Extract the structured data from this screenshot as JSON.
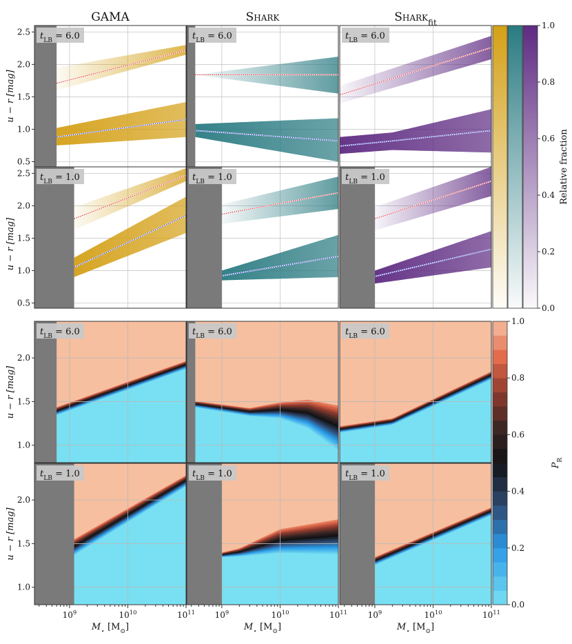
{
  "figure": {
    "column_titles": [
      "GAMA",
      "Shark",
      "Shark",
      "fit"
    ],
    "x_label": "M",
    "x_label_sub": "⋆",
    "x_label_unit": " [M",
    "x_label_unit_sub": "⊙",
    "x_label_unit_end": "]",
    "y_label": "u − r [mag]",
    "top_colorbar_label": "Relative fraction",
    "bottom_colorbar_label": "P",
    "bottom_colorbar_label_sub": "R",
    "panel_label_prefix": "t",
    "panel_label_sub": "LB"
  },
  "colors": {
    "gama": "#d4a017",
    "shark": "#2a7b82",
    "sharkfit": "#5e2b82",
    "red_line": "#e0202a",
    "blue_line": "#2030d0",
    "masked": "#7a7a7a",
    "prob_red": "#f6bfa0",
    "prob_blue": "#78e0f2"
  },
  "chart_data": [
    {
      "type": "area",
      "panel": "GAMA, t_LB = 6.0",
      "t_LB": "6.0",
      "x_scale": "log",
      "xlim": [
        250000000.0,
        100000000000.0
      ],
      "ylim": [
        0.42,
        2.6
      ],
      "mask_below_mass": 600000000.0,
      "series": [
        {
          "name": "red",
          "x": [
            600000000.0,
            100000000000.0
          ],
          "median": [
            1.71,
            2.22
          ],
          "lower": [
            1.6,
            2.15
          ],
          "upper": [
            1.95,
            2.3
          ]
        },
        {
          "name": "blue",
          "x": [
            600000000.0,
            100000000000.0
          ],
          "median": [
            0.88,
            1.15
          ],
          "lower": [
            0.75,
            0.88
          ],
          "upper": [
            1.02,
            1.42
          ]
        }
      ]
    },
    {
      "type": "area",
      "panel": "Shark, t_LB = 6.0",
      "t_LB": "6.0",
      "x_scale": "log",
      "xlim": [
        250000000.0,
        100000000000.0
      ],
      "ylim": [
        0.42,
        2.6
      ],
      "mask_below_mass": 350000000.0,
      "series": [
        {
          "name": "red",
          "x": [
            350000000.0,
            100000000000.0
          ],
          "median": [
            1.84,
            1.84
          ],
          "lower": [
            1.84,
            1.55
          ],
          "upper": [
            1.84,
            2.12
          ]
        },
        {
          "name": "blue",
          "x": [
            350000000.0,
            100000000000.0
          ],
          "median": [
            0.98,
            0.82
          ],
          "lower": [
            0.88,
            0.5
          ],
          "upper": [
            1.08,
            1.17
          ]
        }
      ]
    },
    {
      "type": "area",
      "panel": "Shark fit, t_LB = 6.0",
      "t_LB": "6.0",
      "x_scale": "log",
      "xlim": [
        250000000.0,
        100000000000.0
      ],
      "ylim": [
        0.42,
        2.6
      ],
      "mask_below_mass": 250000000.0,
      "series": [
        {
          "name": "red",
          "x": [
            250000000.0,
            100000000000.0
          ],
          "median": [
            1.53,
            2.26
          ],
          "lower": [
            1.4,
            2.08
          ],
          "upper": [
            1.67,
            2.44
          ]
        },
        {
          "name": "blue",
          "x": [
            250000000.0,
            2000000000.0,
            100000000000.0
          ],
          "median": [
            0.74,
            0.82,
            0.98
          ],
          "lower": [
            0.62,
            0.68,
            0.64
          ],
          "upper": [
            0.88,
            0.95,
            1.31
          ]
        }
      ]
    },
    {
      "type": "area",
      "panel": "GAMA, t_LB = 1.0",
      "t_LB": "1.0",
      "x_scale": "log",
      "xlim": [
        250000000.0,
        100000000000.0
      ],
      "ylim": [
        0.42,
        2.6
      ],
      "mask_below_mass": 1200000000.0,
      "series": [
        {
          "name": "red",
          "x": [
            1200000000.0,
            100000000000.0
          ],
          "median": [
            1.8,
            2.47
          ],
          "lower": [
            1.63,
            2.38
          ],
          "upper": [
            1.98,
            2.58
          ]
        },
        {
          "name": "blue",
          "x": [
            1200000000.0,
            100000000000.0
          ],
          "median": [
            1.05,
            1.85
          ],
          "lower": [
            0.9,
            1.58
          ],
          "upper": [
            1.2,
            2.14
          ]
        }
      ]
    },
    {
      "type": "area",
      "panel": "Shark, t_LB = 1.0",
      "t_LB": "1.0",
      "x_scale": "log",
      "xlim": [
        250000000.0,
        100000000000.0
      ],
      "ylim": [
        0.42,
        2.6
      ],
      "mask_below_mass": 1000000000.0,
      "series": [
        {
          "name": "red",
          "x": [
            1000000000.0,
            100000000000.0
          ],
          "median": [
            1.87,
            2.2
          ],
          "lower": [
            1.72,
            1.95
          ],
          "upper": [
            2.02,
            2.45
          ]
        },
        {
          "name": "blue",
          "x": [
            1000000000.0,
            100000000000.0
          ],
          "median": [
            0.92,
            1.22
          ],
          "lower": [
            0.85,
            0.9
          ],
          "upper": [
            1.0,
            1.55
          ]
        }
      ]
    },
    {
      "type": "area",
      "panel": "Shark fit, t_LB = 1.0",
      "t_LB": "1.0",
      "x_scale": "log",
      "xlim": [
        250000000.0,
        100000000000.0
      ],
      "ylim": [
        0.42,
        2.6
      ],
      "mask_below_mass": 1000000000.0,
      "series": [
        {
          "name": "red",
          "x": [
            1000000000.0,
            100000000000.0
          ],
          "median": [
            1.8,
            2.38
          ],
          "lower": [
            1.62,
            2.15
          ],
          "upper": [
            1.98,
            2.6
          ]
        },
        {
          "name": "blue",
          "x": [
            1000000000.0,
            100000000000.0
          ],
          "median": [
            0.91,
            1.33
          ],
          "lower": [
            0.8,
            1.05
          ],
          "upper": [
            1.0,
            1.61
          ]
        }
      ]
    },
    {
      "type": "heatmap",
      "panel": "GAMA, t_LB = 6.0 (P_R)",
      "t_LB": "6.0",
      "x_scale": "log",
      "xlim": [
        250000000.0,
        100000000000.0
      ],
      "ylim": [
        0.8,
        2.42
      ],
      "mask_below_mass": 600000000.0,
      "boundary": {
        "x": [
          600000000.0,
          100000000000.0
        ],
        "y": [
          1.39,
          1.92
        ]
      },
      "transition_width": [
        0.05,
        0.05
      ]
    },
    {
      "type": "heatmap",
      "panel": "Shark, t_LB = 6.0 (P_R)",
      "t_LB": "6.0",
      "x_scale": "log",
      "xlim": [
        250000000.0,
        100000000000.0
      ],
      "ylim": [
        0.8,
        2.42
      ],
      "mask_below_mass": 350000000.0,
      "boundary": {
        "x": [
          350000000.0,
          3000000000.0,
          10000000000.0,
          30000000000.0,
          100000000000.0
        ],
        "y": [
          1.47,
          1.38,
          1.4,
          1.36,
          1.2
        ]
      },
      "transition_width": [
        0.04,
        0.05,
        0.1,
        0.18,
        0.28
      ]
    },
    {
      "type": "heatmap",
      "panel": "Shark fit, t_LB = 6.0 (P_R)",
      "t_LB": "6.0",
      "x_scale": "log",
      "xlim": [
        250000000.0,
        100000000000.0
      ],
      "ylim": [
        0.8,
        2.42
      ],
      "mask_below_mass": 250000000.0,
      "boundary": {
        "x": [
          250000000.0,
          2000000000.0,
          100000000000.0
        ],
        "y": [
          1.18,
          1.27,
          1.8
        ]
      },
      "transition_width": [
        0.04,
        0.04,
        0.05
      ]
    },
    {
      "type": "heatmap",
      "panel": "GAMA, t_LB = 1.0 (P_R)",
      "t_LB": "1.0",
      "x_scale": "log",
      "xlim": [
        250000000.0,
        100000000000.0
      ],
      "ylim": [
        0.8,
        2.42
      ],
      "mask_below_mass": 1200000000.0,
      "boundary": {
        "x": [
          1200000000.0,
          100000000000.0
        ],
        "y": [
          1.46,
          2.22
        ]
      },
      "transition_width": [
        0.1,
        0.07
      ]
    },
    {
      "type": "heatmap",
      "panel": "Shark, t_LB = 1.0 (P_R)",
      "t_LB": "1.0",
      "x_scale": "log",
      "xlim": [
        250000000.0,
        100000000000.0
      ],
      "ylim": [
        0.8,
        2.42
      ],
      "mask_below_mass": 1000000000.0,
      "boundary": {
        "x": [
          1000000000.0,
          2000000000.0,
          10000000000.0,
          100000000000.0
        ],
        "y": [
          1.37,
          1.4,
          1.53,
          1.58
        ]
      },
      "transition_width": [
        0.03,
        0.05,
        0.15,
        0.22
      ]
    },
    {
      "type": "heatmap",
      "panel": "Shark fit, t_LB = 1.0 (P_R)",
      "t_LB": "1.0",
      "x_scale": "log",
      "xlim": [
        250000000.0,
        100000000000.0
      ],
      "ylim": [
        0.8,
        2.42
      ],
      "mask_below_mass": 1000000000.0,
      "boundary": {
        "x": [
          1000000000.0,
          100000000000.0
        ],
        "y": [
          1.3,
          1.87
        ]
      },
      "transition_width": [
        0.05,
        0.05
      ]
    }
  ],
  "axes": {
    "top_y_ticks": [
      "0.5",
      "1.0",
      "1.5",
      "2.0",
      "2.5"
    ],
    "bottom_y_ticks": [
      "1.0",
      "1.5",
      "2.0"
    ],
    "x_ticks": [
      {
        "base": "10",
        "exp": "9"
      },
      {
        "base": "10",
        "exp": "10"
      },
      {
        "base": "10",
        "exp": "11"
      }
    ],
    "top_cb_ticks": [
      "0.0",
      "0.2",
      "0.4",
      "0.6",
      "0.8",
      "1.0"
    ],
    "bottom_cb_ticks": [
      "0.0",
      "0.2",
      "0.4",
      "0.6",
      "0.8",
      "1.0"
    ]
  }
}
